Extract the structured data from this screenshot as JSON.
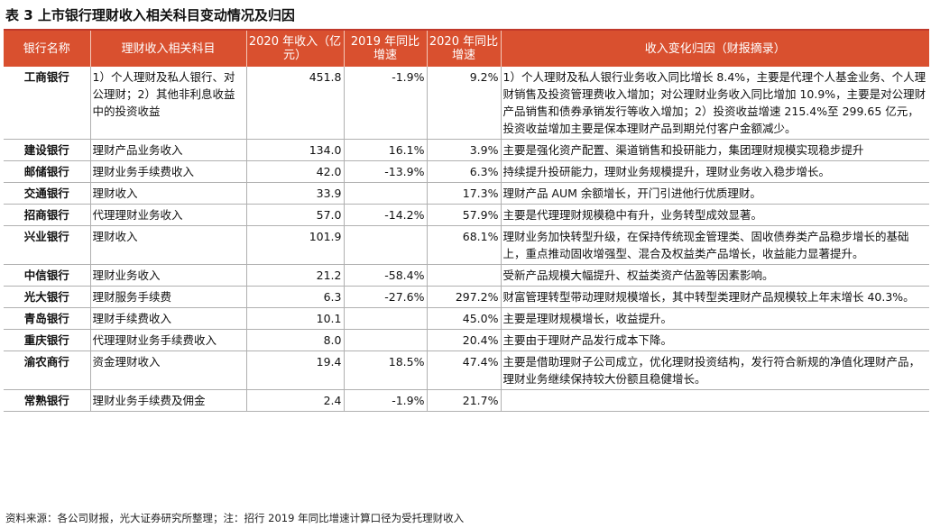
{
  "title": "表 3  上市银行理财收入相关科目变动情况及归因",
  "columns": {
    "bank": "银行名称",
    "item": "理财收入相关科目",
    "income_2020": "2020 年收入（亿元）",
    "growth_2019": "2019 年同比增速",
    "growth_2020": "2020 年同比增速",
    "reason": "收入变化归因（财报摘录）"
  },
  "rows": [
    {
      "bank": "工商银行",
      "item": "1）个人理财及私人银行、对公理财；2）其他非利息收益中的投资收益",
      "income_2020": "451.8",
      "growth_2019": "-1.9%",
      "growth_2020": "9.2%",
      "reason": "1）个人理财及私人银行业务收入同比增长 8.4%，主要是代理个人基金业务、个人理财销售及投资管理费收入增加；对公理财业务收入同比增加 10.9%，主要是对公理财产品销售和债券承销发行等收入增加；2）投资收益增速 215.4%至 299.65 亿元，投资收益增加主要是保本理财产品到期兑付客户金额减少。"
    },
    {
      "bank": "建设银行",
      "item": "理财产品业务收入",
      "income_2020": "134.0",
      "growth_2019": "16.1%",
      "growth_2020": "3.9%",
      "reason": "主要是强化资产配置、渠道销售和投研能力，集团理财规模实现稳步提升"
    },
    {
      "bank": "邮储银行",
      "item": "理财业务手续费收入",
      "income_2020": "42.0",
      "growth_2019": "-13.9%",
      "growth_2020": "6.3%",
      "reason": "持续提升投研能力，理财业务规模提升，理财业务收入稳步增长。"
    },
    {
      "bank": "交通银行",
      "item": "理财收入",
      "income_2020": "33.9",
      "growth_2019": "",
      "growth_2020": "17.3%",
      "reason": "理财产品 AUM 余额增长，开门引进他行优质理财。"
    },
    {
      "bank": "招商银行",
      "item": "代理理财业务收入",
      "income_2020": "57.0",
      "growth_2019": "-14.2%",
      "growth_2020": "57.9%",
      "reason": "主要是代理理财规模稳中有升，业务转型成效显著。"
    },
    {
      "bank": "兴业银行",
      "item": "理财收入",
      "income_2020": "101.9",
      "growth_2019": "",
      "growth_2020": "68.1%",
      "reason": "理财业务加快转型升级，在保持传统现金管理类、固收债券类产品稳步增长的基础上，重点推动固收增强型、混合及权益类产品增长，收益能力显著提升。"
    },
    {
      "bank": "中信银行",
      "item": "理财业务收入",
      "income_2020": "21.2",
      "growth_2019": "-58.4%",
      "growth_2020": "",
      "reason": "受新产品规模大幅提升、权益类资产估盈等因素影响。"
    },
    {
      "bank": "光大银行",
      "item": "理财服务手续费",
      "income_2020": "6.3",
      "growth_2019": "-27.6%",
      "growth_2020": "297.2%",
      "reason": "财富管理转型带动理财规模增长，其中转型类理财产品规模较上年末增长 40.3%。"
    },
    {
      "bank": "青岛银行",
      "item": "理财手续费收入",
      "income_2020": "10.1",
      "growth_2019": "",
      "growth_2020": "45.0%",
      "reason": "主要是理财规模增长，收益提升。"
    },
    {
      "bank": "重庆银行",
      "item": "代理理财业务手续费收入",
      "income_2020": "8.0",
      "growth_2019": "",
      "growth_2020": "20.4%",
      "reason": "主要由于理财产品发行成本下降。"
    },
    {
      "bank": "渝农商行",
      "item": "资金理财收入",
      "income_2020": "19.4",
      "growth_2019": "18.5%",
      "growth_2020": "47.4%",
      "reason": "主要是借助理财子公司成立，优化理财投资结构，发行符合新规的净值化理财产品，理财业务继续保持较大份额且稳健增长。"
    },
    {
      "bank": "常熟银行",
      "item": "理财业务手续费及佣金",
      "income_2020": "2.4",
      "growth_2019": "-1.9%",
      "growth_2020": "21.7%",
      "reason": ""
    }
  ],
  "footer": "资料来源：各公司财报，光大证券研究所整理；注：招行 2019 年同比增速计算口径为受托理财收入"
}
